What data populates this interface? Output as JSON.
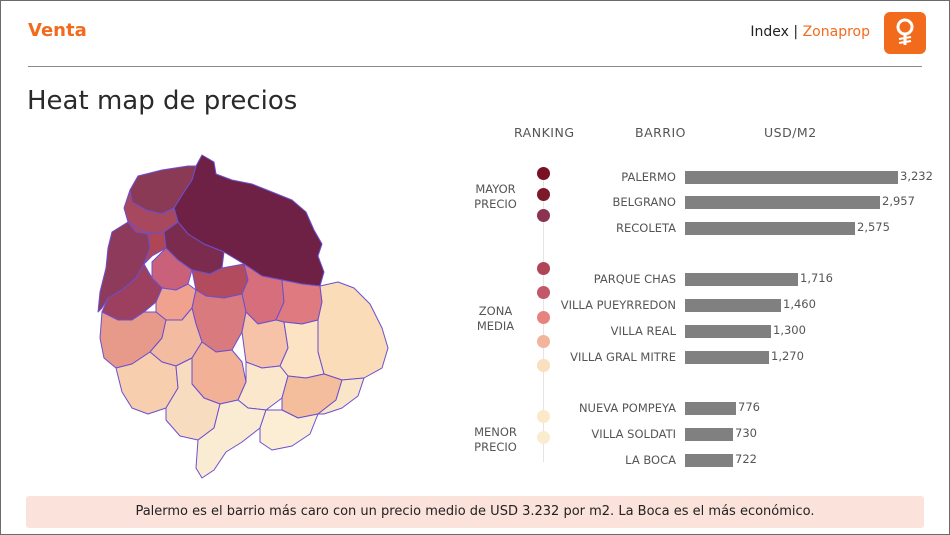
{
  "header": {
    "brand": "Venta",
    "index_label": "Index | ",
    "zonaprop_label": "Zonaprop",
    "logo_icon": "zonaprop-logo-icon"
  },
  "title": "Heat map de precios",
  "columns": {
    "ranking": "RANKING",
    "barrio": "BARRIO",
    "usd_m2": "USD/M2"
  },
  "groups": {
    "mayor": [
      "MAYOR",
      "PRECIO"
    ],
    "media": [
      "ZONA",
      "MEDIA"
    ],
    "menor": [
      "MENOR",
      "PRECIO"
    ]
  },
  "colors": {
    "accent": "#f26b1d",
    "bar": "#808080",
    "map_border": "#6b4fd0",
    "note_bg": "#fbe3dc"
  },
  "ranking": [
    {
      "barrio": "PALERMO",
      "value": 3232,
      "label": "3,232",
      "color": "#7a1024"
    },
    {
      "barrio": "BELGRANO",
      "value": 2957,
      "label": "2,957",
      "color": "#7d1a2a"
    },
    {
      "barrio": "RECOLETA",
      "value": 2575,
      "label": "2,575",
      "color": "#8a3450"
    },
    {
      "barrio": "PARQUE CHAS",
      "value": 1716,
      "label": "1,716",
      "color": "#b04556"
    },
    {
      "barrio": "VILLA PUEYRREDON",
      "value": 1460,
      "label": "1,460",
      "color": "#c2586a"
    },
    {
      "barrio": "VILLA REAL",
      "value": 1300,
      "label": "1,300",
      "color": "#e7837e"
    },
    {
      "barrio": "VILLA GRAL MITRE",
      "value": 1270,
      "label": "1,270",
      "color": "#f2b49a"
    },
    {
      "barrio": "NUEVA POMPEYA",
      "value": 776,
      "label": "776",
      "color": "#fbdcb0"
    },
    {
      "barrio": "VILLA SOLDATI",
      "value": 730,
      "label": "730",
      "color": "#fbe9c8"
    },
    {
      "barrio": "LA BOCA",
      "value": 722,
      "label": "722",
      "color": "#faeccf"
    }
  ],
  "note": "Palermo es el barrio más caro con un precio medio de USD 3.232 por m2. La Boca es el más económico."
}
